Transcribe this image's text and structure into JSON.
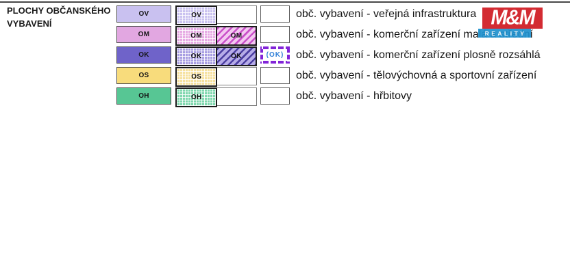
{
  "page": {
    "top_rule_color": "#474747"
  },
  "title": {
    "line1": "PLOCHY OBČANSKÉHO",
    "line2": "VYBAVENÍ"
  },
  "watermark": {
    "brand": "M&M Reality",
    "mark_text": "M&M",
    "banner_text": "REALITY",
    "red_color": "#d32b32",
    "blue_color": "#2092cf"
  },
  "legend": {
    "rows": [
      {
        "code": "OV",
        "description": "obč. vybavení - veřejná infrastruktura",
        "solid_fill": "#c9c1f0",
        "grid_fill": "#c9c1f0"
      },
      {
        "code": "OM",
        "description": "obč. vybavení - komerční zařízení malá a střední",
        "solid_fill": "#e2a7e1",
        "grid_fill": "#e6a9e3",
        "stripe_fill": "#f4c9f1",
        "stripe_line": "#c94fc9"
      },
      {
        "code": "OK",
        "special_code": "(OK)",
        "description": "obč. vybavení - komerční zařízení plosně rozsáhlá",
        "solid_fill": "#6f63c9",
        "grid_fill": "#a79de2",
        "stripe_fill": "#b6ace8",
        "stripe_line": "#4a3da0",
        "special_border": "#8224d8",
        "special_text_color": "#2f7fd8"
      },
      {
        "code": "OS",
        "description": "obč. vybavení - tělovýchovná a sportovní zařízení",
        "solid_fill": "#f8dc7c",
        "grid_fill": "#f6e19e"
      },
      {
        "code": "OH",
        "description": "obč. vybavení - hřbitovy",
        "solid_fill": "#57c694",
        "grid_fill": "#7ed7ad"
      }
    ]
  }
}
